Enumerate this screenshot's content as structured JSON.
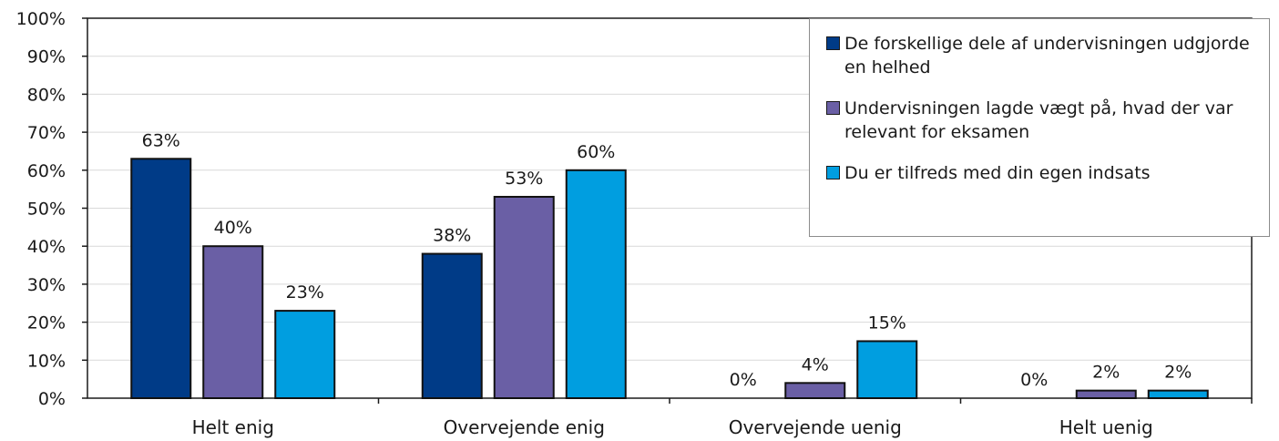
{
  "chart_data": {
    "type": "bar",
    "categories": [
      "Helt enig",
      "Overvejende enig",
      "Overvejende uenig",
      "Helt uenig"
    ],
    "series": [
      {
        "name": "De forskellige dele af undervisningen udgjorde en helhed",
        "values": [
          63,
          38,
          0,
          0
        ],
        "labels": [
          "63%",
          "38%",
          "0%",
          "0%"
        ],
        "color": "#003b87"
      },
      {
        "name": "Undervisningen lagde vægt på, hvad der var relevant for eksamen",
        "values": [
          40,
          53,
          4,
          2
        ],
        "labels": [
          "40%",
          "53%",
          "4%",
          "2%"
        ],
        "color": "#6a5fa5"
      },
      {
        "name": "Du er tilfreds med din egen indsats",
        "values": [
          23,
          60,
          15,
          2
        ],
        "labels": [
          "23%",
          "60%",
          "15%",
          "2%"
        ],
        "color": "#009ee0"
      }
    ],
    "yticks": [
      "0%",
      "10%",
      "20%",
      "30%",
      "40%",
      "50%",
      "60%",
      "70%",
      "80%",
      "90%",
      "100%"
    ],
    "ylim": [
      0,
      100
    ],
    "grid": true,
    "legend_position": "top-right"
  }
}
